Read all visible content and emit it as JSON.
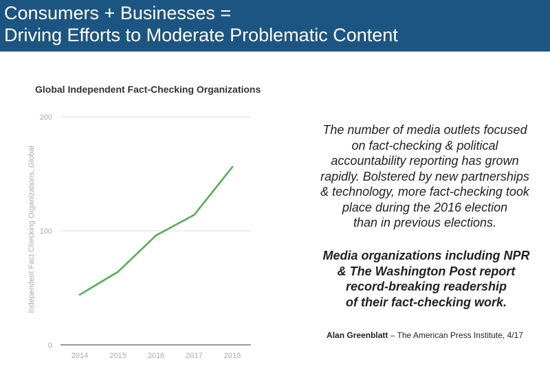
{
  "header": {
    "line1": "Consumers + Businesses =",
    "line2": "Driving Efforts to Moderate Problematic Content",
    "background": "#1d5582"
  },
  "chart_data": {
    "type": "line",
    "title": "Global Independent Fact-Checking Organizations",
    "xlabel": "",
    "ylabel": "Independent Fact Checking Organizations, Global",
    "categories": [
      "2014",
      "2015",
      "2016",
      "2017",
      "2018"
    ],
    "series": [
      {
        "name": "Global",
        "values": [
          44,
          64,
          96,
          114,
          156
        ],
        "color": "#4caf50"
      }
    ],
    "ylim": [
      0,
      200
    ],
    "yticks": [
      0,
      100,
      200
    ],
    "grid": true
  },
  "text": {
    "paragraph_lines": [
      "The number of media outlets focused",
      "on fact-checking & political",
      "accountability reporting has grown",
      "rapidly. Bolstered by new partnerships",
      "& technology, more fact-checking took",
      "place during the 2016 election",
      "than in previous elections."
    ],
    "bold_lines": [
      "Media organizations including NPR",
      "& The Washington Post report",
      "record-breaking readership",
      "of their fact-checking work."
    ],
    "citation_author": "Alan Greenblatt",
    "citation_source": " – The American Press Institute, 4/17"
  }
}
